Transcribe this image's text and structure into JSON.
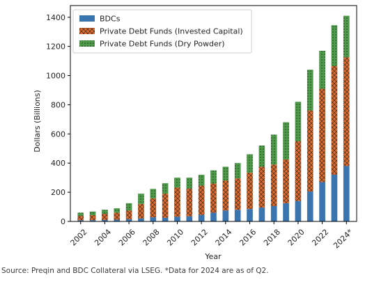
{
  "chart_data": {
    "type": "bar",
    "stacked": true,
    "title": "",
    "xlabel": "Year",
    "ylabel": "Dollars (Billions)",
    "ylim": [
      0,
      1480
    ],
    "yticks": [
      0,
      200,
      400,
      600,
      800,
      1000,
      1200,
      1400
    ],
    "categories": [
      "2002",
      "2003",
      "2004",
      "2005",
      "2006",
      "2007",
      "2008",
      "2009",
      "2010",
      "2011",
      "2012",
      "2013",
      "2014",
      "2015",
      "2016",
      "2017",
      "2018",
      "2019",
      "2020",
      "2021",
      "2022",
      "2023",
      "2024*"
    ],
    "xtick_labels": [
      "2002",
      "2004",
      "2006",
      "2008",
      "2010",
      "2012",
      "2014",
      "2016",
      "2018",
      "2020",
      "2022",
      "2024*"
    ],
    "grid": false,
    "legend_position": "upper-left",
    "series": [
      {
        "name": "BDCs",
        "color": "#3a75b0",
        "pattern": "solid",
        "values": [
          8,
          9,
          10,
          12,
          15,
          20,
          28,
          25,
          32,
          35,
          45,
          60,
          75,
          80,
          85,
          95,
          105,
          125,
          140,
          205,
          270,
          320,
          380
        ]
      },
      {
        "name": "Private Debt Funds (Invested Capital)",
        "color": "#dd6b2e",
        "pattern": "crosshatch",
        "values": [
          30,
          34,
          42,
          48,
          60,
          100,
          130,
          165,
          200,
          190,
          200,
          200,
          205,
          215,
          250,
          280,
          285,
          300,
          410,
          555,
          640,
          745,
          745
        ]
      },
      {
        "name": "Private Debt Funds (Dry Powder)",
        "color": "#4e9a4a",
        "pattern": "dots",
        "values": [
          22,
          25,
          28,
          30,
          50,
          70,
          65,
          72,
          68,
          75,
          75,
          90,
          95,
          105,
          125,
          145,
          205,
          255,
          270,
          280,
          260,
          280,
          285
        ]
      }
    ]
  },
  "footer": {
    "source": "Source: Preqin and BDC Collateral via LSEG. *Data for 2024 are as of Q2."
  }
}
